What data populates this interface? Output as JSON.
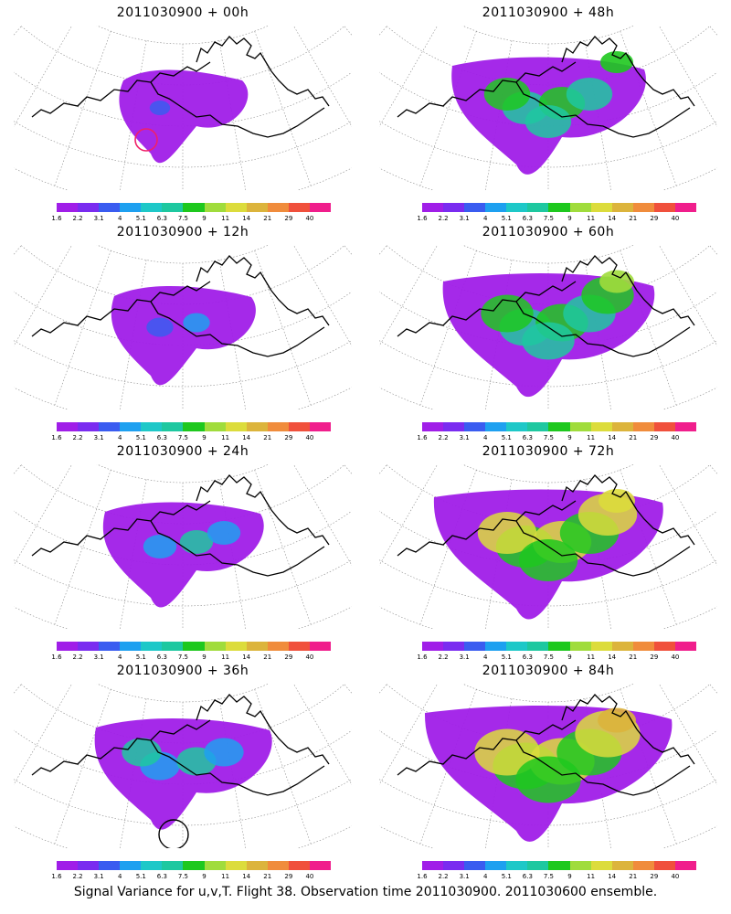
{
  "panels": [
    {
      "title": "2011030900 + 00h",
      "marker": "red-circle",
      "intensity": 0
    },
    {
      "title": "2011030900 + 48h",
      "marker": null,
      "intensity": 4
    },
    {
      "title": "2011030900 + 12h",
      "marker": null,
      "intensity": 1
    },
    {
      "title": "2011030900 + 60h",
      "marker": null,
      "intensity": 5
    },
    {
      "title": "2011030900 + 24h",
      "marker": null,
      "intensity": 2
    },
    {
      "title": "2011030900 + 72h",
      "marker": null,
      "intensity": 6
    },
    {
      "title": "2011030900 + 36h",
      "marker": "black-circle",
      "intensity": 3
    },
    {
      "title": "2011030900 + 84h",
      "marker": null,
      "intensity": 7
    }
  ],
  "colorbar": {
    "colors": [
      "#a01ee8",
      "#7a2cf0",
      "#3a5cf0",
      "#1ea0f0",
      "#1ec8c8",
      "#1ec8a0",
      "#1ec81e",
      "#a0dc3c",
      "#dcdc3c",
      "#dcb43c",
      "#f08c3c",
      "#f0503c",
      "#f01e8c"
    ],
    "labels": [
      "1.6",
      "2.2",
      "3.1",
      "4",
      "5.1",
      "6.3",
      "7.5",
      "9",
      "11",
      "14",
      "21",
      "29",
      "40"
    ]
  },
  "caption": "Signal Variance for u,v,T. Flight 38. Observation time 2011030900. 2011030600 ensemble."
}
